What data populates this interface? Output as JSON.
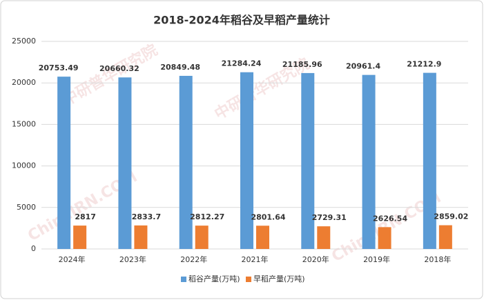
{
  "chart_data": {
    "type": "bar",
    "title": "2018-2024年稻谷及早稻产量统计",
    "categories": [
      "2024年",
      "2023年",
      "2022年",
      "2021年",
      "2020年",
      "2019年",
      "2018年"
    ],
    "series": [
      {
        "name": "稻谷产量(万吨)",
        "color": "#5b9bd5",
        "values": [
          20753.49,
          20660.32,
          20849.48,
          21284.24,
          21185.96,
          20961.4,
          21212.9
        ]
      },
      {
        "name": "早稻产量(万吨)",
        "color": "#ed7d31",
        "values": [
          2817,
          2833.7,
          2812.27,
          2801.64,
          2729.31,
          2626.54,
          2859.02
        ]
      }
    ],
    "ylim": [
      0,
      25000
    ],
    "yticks": [
      0,
      5000,
      10000,
      15000,
      20000,
      25000
    ],
    "grid": true,
    "legend": "bottom",
    "watermarks": [
      "ChinaIRN.COM",
      "中研普华研究院"
    ]
  }
}
